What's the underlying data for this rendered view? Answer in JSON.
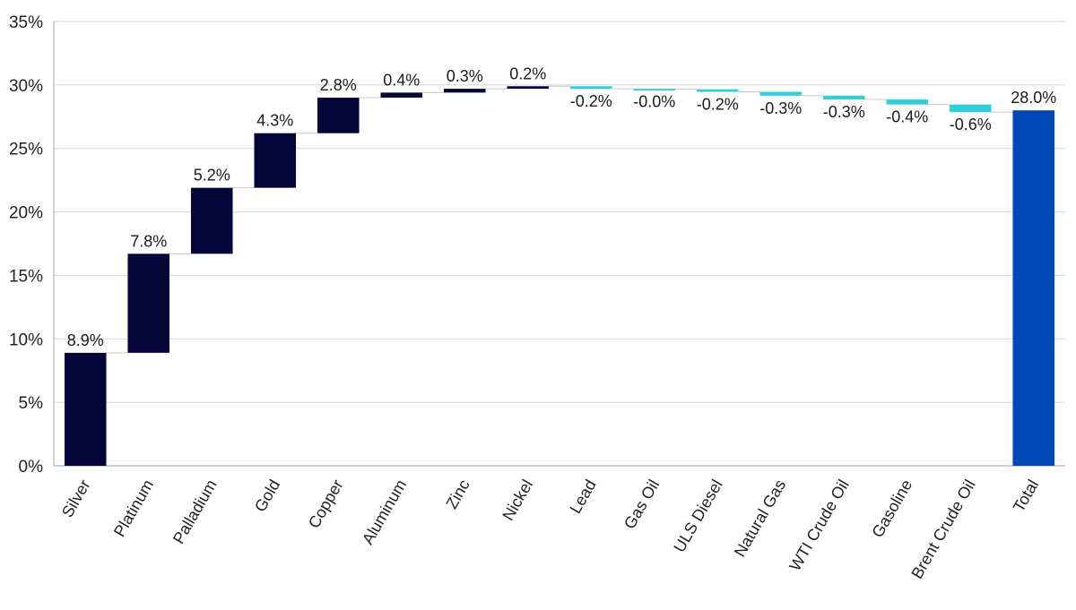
{
  "chart_data": {
    "type": "waterfall",
    "title": "",
    "xlabel": "",
    "ylabel": "",
    "ylim": [
      0,
      35
    ],
    "yticks": [
      0,
      5,
      10,
      15,
      20,
      25,
      30,
      35
    ],
    "ytick_labels": [
      "0%",
      "5%",
      "10%",
      "15%",
      "20%",
      "25%",
      "30%",
      "35%"
    ],
    "grid": true,
    "categories": [
      "Silver",
      "Platinum",
      "Palladium",
      "Gold",
      "Copper",
      "Aluminum",
      "Zinc",
      "Nickel",
      "Lead",
      "Gas Oil",
      "ULS Diesel",
      "Natural Gas",
      "WTI Crude Oil",
      "Gasoline",
      "Brent Crude Oil",
      "Total"
    ],
    "values": [
      8.9,
      7.8,
      5.2,
      4.3,
      2.8,
      0.4,
      0.3,
      0.2,
      -0.2,
      -0.04,
      -0.2,
      -0.3,
      -0.3,
      -0.4,
      -0.6,
      28.0
    ],
    "labels": [
      "8.9%",
      "7.8%",
      "5.2%",
      "4.3%",
      "2.8%",
      "0.4%",
      "0.3%",
      "0.2%",
      "-0.2%",
      "-0.0%",
      "-0.2%",
      "-0.3%",
      "-0.3%",
      "-0.4%",
      "-0.6%",
      "28.0%"
    ],
    "colors": {
      "positive": "#05053a",
      "negative": "#2ecfd8",
      "total": "#0047b8",
      "grid": "#c9d6e0",
      "connector": "#c8c8c8"
    }
  }
}
